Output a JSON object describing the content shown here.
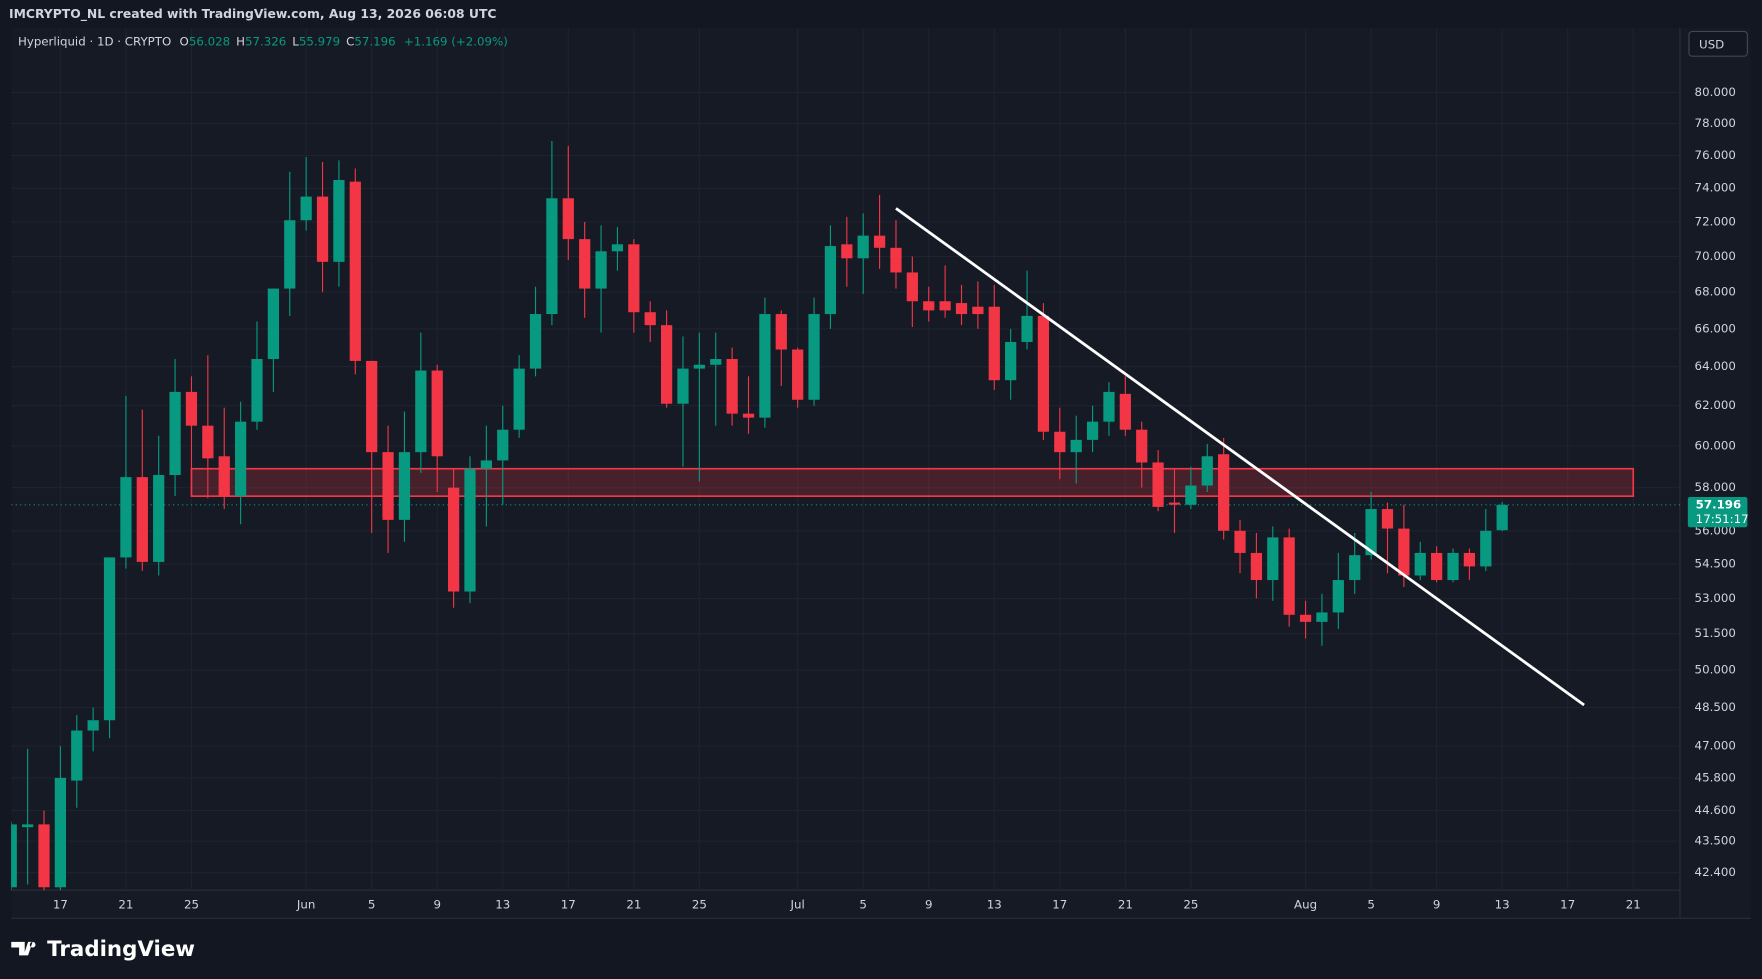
{
  "header": {
    "credit": "IMCRYPTO_NL created with TradingView.com, Aug 13, 2026 06:08 UTC",
    "currency": "USD",
    "brand": "TradingView"
  },
  "chart_data": {
    "type": "candlestick",
    "symbol": "Hyperliquid · 1D · CRYPTO",
    "ohlc_labels": [
      "O",
      "H",
      "L",
      "C"
    ],
    "change": "+1.169 (+2.09%)",
    "countdown": "17:51:17",
    "up_color": "#089981",
    "down_color": "#f23645",
    "log_scale": true,
    "grid": true,
    "x": [
      "2026-05-14",
      "2026-05-15",
      "2026-05-16",
      "2026-05-17",
      "2026-05-18",
      "2026-05-19",
      "2026-05-20",
      "2026-05-21",
      "2026-05-22",
      "2026-05-23",
      "2026-05-24",
      "2026-05-25",
      "2026-05-26",
      "2026-05-27",
      "2026-05-28",
      "2026-05-29",
      "2026-05-30",
      "2026-05-31",
      "2026-06-01",
      "2026-06-02",
      "2026-06-03",
      "2026-06-04",
      "2026-06-05",
      "2026-06-06",
      "2026-06-07",
      "2026-06-08",
      "2026-06-09",
      "2026-06-10",
      "2026-06-11",
      "2026-06-12",
      "2026-06-13",
      "2026-06-14",
      "2026-06-15",
      "2026-06-16",
      "2026-06-17",
      "2026-06-18",
      "2026-06-19",
      "2026-06-20",
      "2026-06-21",
      "2026-06-22",
      "2026-06-23",
      "2026-06-24",
      "2026-06-25",
      "2026-06-26",
      "2026-06-27",
      "2026-06-28",
      "2026-06-29",
      "2026-06-30",
      "2026-07-01",
      "2026-07-02",
      "2026-07-03",
      "2026-07-04",
      "2026-07-05",
      "2026-07-06",
      "2026-07-07",
      "2026-07-08",
      "2026-07-09",
      "2026-07-10",
      "2026-07-11",
      "2026-07-12",
      "2026-07-13",
      "2026-07-14",
      "2026-07-15",
      "2026-07-16",
      "2026-07-17",
      "2026-07-18",
      "2026-07-19",
      "2026-07-20",
      "2026-07-21",
      "2026-07-22",
      "2026-07-23",
      "2026-07-24",
      "2026-07-25",
      "2026-07-26",
      "2026-07-27",
      "2026-07-28",
      "2026-07-29",
      "2026-07-30",
      "2026-07-31",
      "2026-08-01",
      "2026-08-02",
      "2026-08-03",
      "2026-08-04",
      "2026-08-05",
      "2026-08-06",
      "2026-08-07",
      "2026-08-08",
      "2026-08-09",
      "2026-08-10",
      "2026-08-11",
      "2026-08-12",
      "2026-08-13"
    ],
    "open": [
      41.9,
      44.0,
      44.1,
      41.9,
      45.7,
      47.6,
      48.0,
      54.8,
      58.5,
      54.6,
      58.6,
      62.7,
      61.0,
      59.5,
      57.6,
      61.2,
      64.4,
      68.2,
      72.1,
      73.5,
      69.7,
      74.4,
      64.3,
      59.7,
      56.5,
      59.7,
      63.8,
      58.0,
      53.3,
      58.9,
      59.3,
      60.8,
      63.9,
      66.8,
      73.4,
      71.0,
      68.2,
      70.3,
      70.7,
      66.9,
      66.2,
      62.1,
      63.9,
      64.1,
      64.4,
      61.6,
      61.4,
      66.8,
      64.9,
      62.3,
      66.8,
      70.7,
      69.9,
      71.2,
      70.5,
      69.1,
      67.5,
      67.5,
      67.4,
      67.2,
      67.2,
      63.3,
      65.3,
      66.7,
      60.7,
      59.7,
      60.3,
      61.2,
      62.6,
      60.8,
      59.2,
      57.3,
      57.2,
      58.1,
      59.6,
      56.0,
      55.0,
      53.8,
      55.7,
      52.3,
      52.0,
      52.4,
      53.8,
      54.9,
      57.0,
      56.1,
      54.0,
      55.0,
      53.8,
      55.0,
      54.4,
      56.028
    ],
    "high": [
      44.2,
      46.9,
      44.6,
      47.0,
      48.2,
      48.5,
      54.8,
      62.5,
      61.8,
      60.5,
      64.4,
      63.5,
      64.6,
      61.9,
      62.2,
      66.4,
      68.2,
      75.0,
      75.9,
      75.6,
      75.7,
      75.2,
      64.3,
      61.0,
      61.7,
      65.8,
      64.1,
      58.9,
      59.5,
      61.0,
      62.0,
      64.6,
      68.3,
      76.9,
      76.6,
      72.0,
      71.8,
      71.7,
      71.0,
      67.5,
      67.0,
      65.6,
      65.8,
      65.8,
      65.0,
      63.5,
      67.7,
      67.0,
      65.0,
      67.7,
      71.8,
      72.3,
      72.5,
      73.6,
      72.1,
      70.0,
      68.3,
      69.5,
      68.4,
      68.6,
      68.4,
      66.0,
      69.2,
      67.4,
      61.9,
      61.5,
      62.0,
      63.2,
      63.5,
      61.2,
      59.8,
      58.9,
      59.0,
      60.1,
      60.4,
      56.5,
      55.9,
      56.2,
      56.1,
      52.9,
      53.2,
      55.0,
      55.9,
      57.8,
      57.3,
      57.2,
      55.5,
      55.3,
      55.2,
      55.2,
      57.0,
      57.326
    ],
    "low": [
      41.5,
      42.0,
      41.5,
      41.5,
      44.7,
      46.8,
      47.3,
      54.3,
      54.2,
      54.0,
      57.6,
      58.8,
      57.5,
      57.0,
      56.3,
      60.8,
      62.7,
      66.7,
      71.5,
      68.0,
      68.3,
      63.6,
      55.9,
      55.0,
      55.5,
      58.7,
      57.8,
      52.6,
      52.8,
      56.2,
      57.2,
      60.4,
      63.5,
      66.2,
      69.8,
      66.6,
      65.8,
      69.2,
      65.8,
      65.3,
      61.9,
      59.0,
      58.3,
      61.0,
      61.0,
      60.6,
      60.9,
      63.0,
      61.9,
      62.0,
      66.0,
      68.3,
      67.9,
      69.3,
      68.2,
      66.1,
      66.4,
      66.6,
      66.2,
      66.0,
      62.8,
      62.3,
      64.9,
      60.3,
      58.4,
      58.2,
      59.7,
      60.5,
      60.5,
      58.0,
      56.9,
      55.9,
      57.0,
      57.8,
      55.6,
      54.1,
      53.0,
      52.9,
      51.8,
      51.3,
      51.0,
      51.7,
      53.2,
      54.7,
      54.1,
      53.5,
      53.8,
      53.7,
      53.7,
      53.8,
      54.2,
      55.979
    ],
    "close": [
      44.1,
      44.1,
      41.9,
      45.8,
      47.6,
      48.0,
      54.8,
      58.5,
      54.6,
      58.6,
      62.7,
      61.0,
      59.4,
      57.6,
      61.2,
      64.4,
      68.2,
      72.1,
      73.5,
      69.7,
      74.5,
      64.3,
      59.7,
      56.5,
      59.7,
      63.8,
      59.5,
      53.3,
      58.9,
      59.3,
      60.8,
      63.9,
      66.8,
      73.4,
      71.0,
      68.2,
      70.3,
      70.7,
      66.9,
      66.2,
      62.1,
      63.9,
      64.1,
      64.4,
      61.6,
      61.4,
      66.8,
      64.9,
      62.3,
      66.8,
      70.6,
      69.9,
      71.2,
      70.5,
      69.1,
      67.5,
      67.0,
      67.0,
      66.8,
      66.8,
      63.3,
      65.3,
      66.7,
      60.7,
      59.7,
      60.3,
      61.2,
      62.7,
      60.8,
      59.2,
      57.1,
      57.2,
      58.1,
      59.5,
      56.0,
      55.0,
      53.8,
      55.7,
      52.3,
      52.0,
      52.4,
      53.8,
      54.9,
      57.0,
      56.1,
      54.0,
      55.0,
      53.8,
      55.0,
      54.4,
      56.0,
      57.196
    ],
    "ylim": [
      41.8,
      84.3
    ],
    "yticks": [
      {
        "value": 80,
        "label": "80.000"
      },
      {
        "value": 78,
        "label": "78.000"
      },
      {
        "value": 76,
        "label": "76.000"
      },
      {
        "value": 74,
        "label": "74.000"
      },
      {
        "value": 72,
        "label": "72.000"
      },
      {
        "value": 70,
        "label": "70.000"
      },
      {
        "value": 68,
        "label": "68.000"
      },
      {
        "value": 66,
        "label": "66.000"
      },
      {
        "value": 64,
        "label": "64.000"
      },
      {
        "value": 62,
        "label": "62.000"
      },
      {
        "value": 60,
        "label": "60.000"
      },
      {
        "value": 58,
        "label": "58.000"
      },
      {
        "value": 56,
        "label": "56.000"
      },
      {
        "value": 54.5,
        "label": "54.500"
      },
      {
        "value": 53,
        "label": "53.000"
      },
      {
        "value": 51.5,
        "label": "51.500"
      },
      {
        "value": 50,
        "label": "50.000"
      },
      {
        "value": 48.5,
        "label": "48.500"
      },
      {
        "value": 47,
        "label": "47.000"
      },
      {
        "value": 45.8,
        "label": "45.800"
      },
      {
        "value": 44.6,
        "label": "44.600"
      },
      {
        "value": 43.5,
        "label": "43.500"
      },
      {
        "value": 42.4,
        "label": "42.400"
      }
    ],
    "xticks": [
      {
        "value": "2026-05-17",
        "label": "17"
      },
      {
        "value": "2026-05-21",
        "label": "21"
      },
      {
        "value": "2026-05-25",
        "label": "25"
      },
      {
        "value": "2026-06-01",
        "label": "Jun"
      },
      {
        "value": "2026-06-05",
        "label": "5"
      },
      {
        "value": "2026-06-09",
        "label": "9"
      },
      {
        "value": "2026-06-13",
        "label": "13"
      },
      {
        "value": "2026-06-17",
        "label": "17"
      },
      {
        "value": "2026-06-21",
        "label": "21"
      },
      {
        "value": "2026-06-25",
        "label": "25"
      },
      {
        "value": "2026-07-01",
        "label": "Jul"
      },
      {
        "value": "2026-07-05",
        "label": "5"
      },
      {
        "value": "2026-07-09",
        "label": "9"
      },
      {
        "value": "2026-07-13",
        "label": "13"
      },
      {
        "value": "2026-07-17",
        "label": "17"
      },
      {
        "value": "2026-07-21",
        "label": "21"
      },
      {
        "value": "2026-07-25",
        "label": "25"
      },
      {
        "value": "2026-08-01",
        "label": "Aug"
      },
      {
        "value": "2026-08-05",
        "label": "5"
      },
      {
        "value": "2026-08-09",
        "label": "9"
      },
      {
        "value": "2026-08-13",
        "label": "13"
      },
      {
        "value": "2026-08-17",
        "label": "17"
      },
      {
        "value": "2026-08-21",
        "label": "21"
      }
    ],
    "zone": {
      "x": [
        "2026-05-25",
        "2026-08-21"
      ],
      "y": [
        57.6,
        58.9
      ],
      "color": "#f23645"
    },
    "trendline": {
      "x": [
        "2026-07-07",
        "2026-08-18"
      ],
      "y": [
        72.8,
        48.6
      ],
      "color": "#ffffff"
    }
  }
}
